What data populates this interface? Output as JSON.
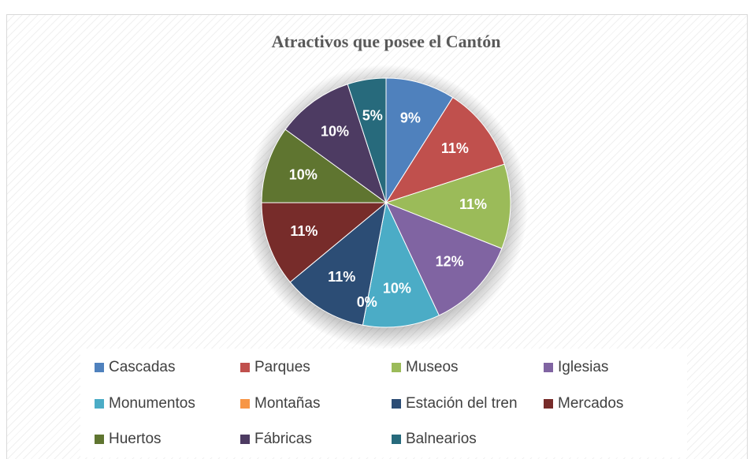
{
  "chart_data": {
    "type": "pie",
    "title": "Atractivos que posee el Cantón",
    "categories": [
      "Cascadas",
      "Parques",
      "Museos",
      "Iglesias",
      "Monumentos",
      "Montañas",
      "Estación del tren",
      "Mercados",
      "Huertos",
      "Fábricas",
      "Balnearios"
    ],
    "values": [
      9,
      11,
      11,
      12,
      10,
      0,
      11,
      11,
      10,
      10,
      5
    ],
    "value_labels": [
      "9%",
      "11%",
      "11%",
      "12%",
      "10%",
      "0%",
      "11%",
      "11%",
      "10%",
      "10%",
      "5%"
    ],
    "colors": [
      "#4f81bd",
      "#c0504d",
      "#9bbb59",
      "#8064a2",
      "#4bacc6",
      "#f79646",
      "#2c4d75",
      "#772c2a",
      "#5f7530",
      "#4d3b62",
      "#276a7c"
    ],
    "legend": "bottom"
  }
}
